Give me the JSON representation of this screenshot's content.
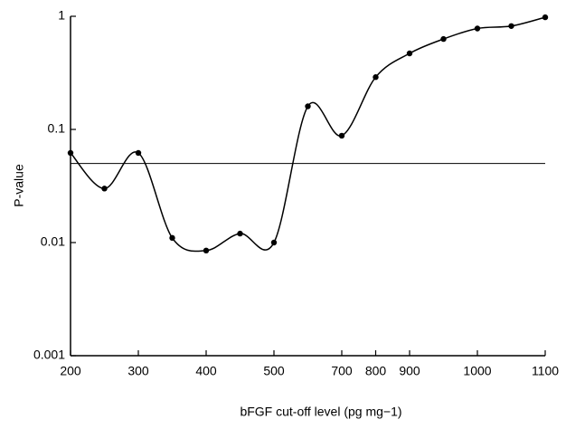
{
  "chart_data": {
    "type": "line",
    "xlabel": "bFGF cut-off level (pg mg−1)",
    "ylabel": "P-value",
    "categories": [
      "200",
      null,
      "300",
      null,
      "400",
      null,
      "500",
      null,
      "700",
      "800",
      "900",
      null,
      "1000",
      null,
      "1100"
    ],
    "series": [
      {
        "color": "#000000",
        "values": [
          0.062,
          0.03,
          0.062,
          0.011,
          0.0085,
          0.012,
          0.01,
          0.16,
          0.088,
          0.29,
          0.47,
          0.63,
          0.78,
          0.82,
          0.98
        ]
      }
    ],
    "reference_line": 0.05,
    "log_y": true,
    "ylim": [
      0.001,
      1
    ],
    "yticks": [
      0.001,
      0.01,
      0.1,
      1
    ]
  }
}
